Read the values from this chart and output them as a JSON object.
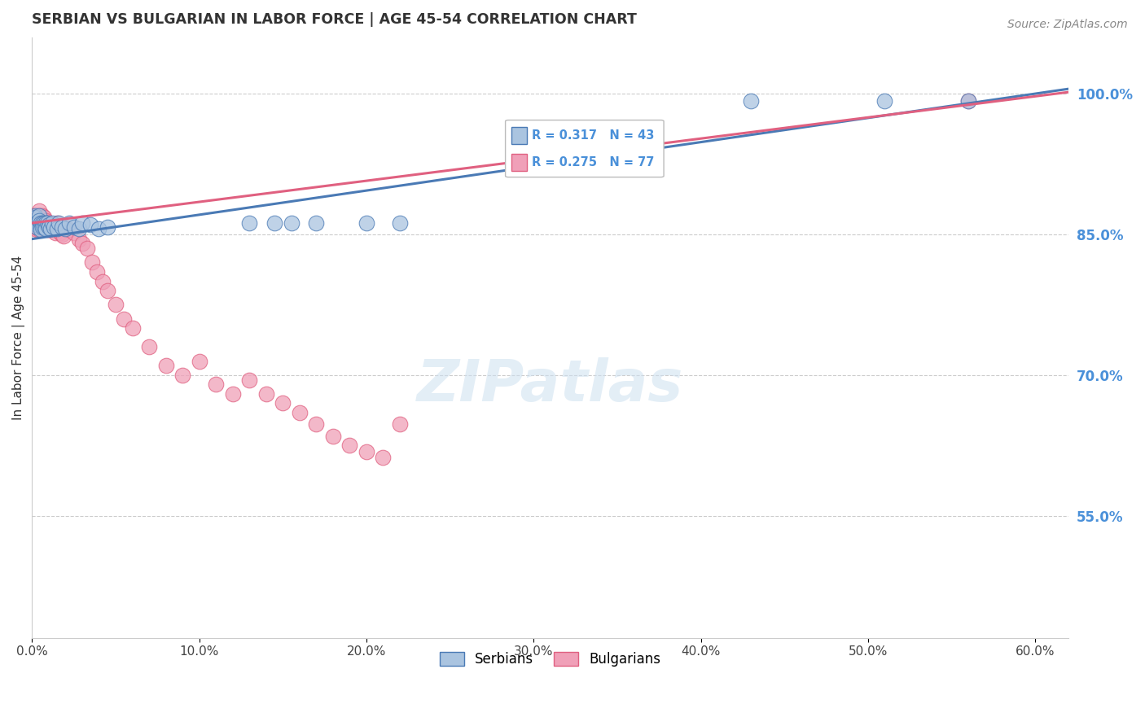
{
  "title": "SERBIAN VS BULGARIAN IN LABOR FORCE | AGE 45-54 CORRELATION CHART",
  "source": "Source: ZipAtlas.com",
  "ylabel": "In Labor Force | Age 45-54",
  "x_tick_labels": [
    "0.0%",
    "10.0%",
    "20.0%",
    "30.0%",
    "40.0%",
    "50.0%",
    "60.0%"
  ],
  "x_tick_values": [
    0.0,
    0.1,
    0.2,
    0.3,
    0.4,
    0.5,
    0.6
  ],
  "y_tick_labels": [
    "100.0%",
    "85.0%",
    "70.0%",
    "55.0%"
  ],
  "y_tick_values": [
    1.0,
    0.85,
    0.7,
    0.55
  ],
  "xlim": [
    0.0,
    0.62
  ],
  "ylim": [
    0.42,
    1.06
  ],
  "legend_entries": [
    "Serbians",
    "Bulgarians"
  ],
  "serbian_color": "#aac4e0",
  "bulgarian_color": "#f0a0b8",
  "serbian_line_color": "#4a7ab5",
  "bulgarian_line_color": "#e06080",
  "R_serbian": 0.317,
  "N_serbian": 43,
  "R_bulgarian": 0.275,
  "N_bulgarian": 77,
  "serbian_x": [
    0.001,
    0.002,
    0.002,
    0.003,
    0.003,
    0.003,
    0.004,
    0.004,
    0.005,
    0.005,
    0.005,
    0.006,
    0.006,
    0.007,
    0.007,
    0.008,
    0.008,
    0.009,
    0.01,
    0.01,
    0.011,
    0.012,
    0.013,
    0.015,
    0.016,
    0.018,
    0.02,
    0.022,
    0.025,
    0.028,
    0.03,
    0.035,
    0.04,
    0.045,
    0.13,
    0.145,
    0.155,
    0.17,
    0.2,
    0.22,
    0.43,
    0.51,
    0.56
  ],
  "serbian_y": [
    0.862,
    0.87,
    0.868,
    0.862,
    0.86,
    0.858,
    0.87,
    0.865,
    0.862,
    0.858,
    0.855,
    0.862,
    0.858,
    0.862,
    0.858,
    0.862,
    0.856,
    0.862,
    0.86,
    0.858,
    0.856,
    0.862,
    0.858,
    0.856,
    0.862,
    0.858,
    0.856,
    0.862,
    0.858,
    0.856,
    0.862,
    0.86,
    0.856,
    0.858,
    0.862,
    0.862,
    0.862,
    0.862,
    0.862,
    0.862,
    0.992,
    0.992,
    0.992
  ],
  "bulgarian_x": [
    0.001,
    0.001,
    0.002,
    0.002,
    0.002,
    0.002,
    0.003,
    0.003,
    0.003,
    0.003,
    0.003,
    0.004,
    0.004,
    0.004,
    0.004,
    0.004,
    0.005,
    0.005,
    0.005,
    0.005,
    0.006,
    0.006,
    0.006,
    0.006,
    0.007,
    0.007,
    0.007,
    0.008,
    0.008,
    0.008,
    0.009,
    0.009,
    0.009,
    0.01,
    0.01,
    0.01,
    0.011,
    0.011,
    0.012,
    0.012,
    0.013,
    0.014,
    0.015,
    0.016,
    0.017,
    0.018,
    0.019,
    0.02,
    0.022,
    0.025,
    0.028,
    0.03,
    0.033,
    0.036,
    0.039,
    0.042,
    0.045,
    0.05,
    0.055,
    0.06,
    0.07,
    0.08,
    0.09,
    0.1,
    0.11,
    0.12,
    0.13,
    0.14,
    0.15,
    0.16,
    0.17,
    0.18,
    0.19,
    0.2,
    0.21,
    0.22,
    0.56
  ],
  "bulgarian_y": [
    0.87,
    0.862,
    0.87,
    0.865,
    0.862,
    0.858,
    0.87,
    0.865,
    0.862,
    0.858,
    0.855,
    0.875,
    0.87,
    0.865,
    0.86,
    0.855,
    0.868,
    0.865,
    0.862,
    0.858,
    0.87,
    0.865,
    0.862,
    0.858,
    0.868,
    0.862,
    0.858,
    0.865,
    0.862,
    0.858,
    0.862,
    0.858,
    0.855,
    0.862,
    0.858,
    0.855,
    0.858,
    0.855,
    0.858,
    0.855,
    0.855,
    0.852,
    0.862,
    0.855,
    0.852,
    0.85,
    0.848,
    0.858,
    0.855,
    0.852,
    0.845,
    0.84,
    0.835,
    0.82,
    0.81,
    0.8,
    0.79,
    0.775,
    0.76,
    0.75,
    0.73,
    0.71,
    0.7,
    0.715,
    0.69,
    0.68,
    0.695,
    0.68,
    0.67,
    0.66,
    0.648,
    0.635,
    0.625,
    0.618,
    0.612,
    0.648,
    0.992
  ]
}
